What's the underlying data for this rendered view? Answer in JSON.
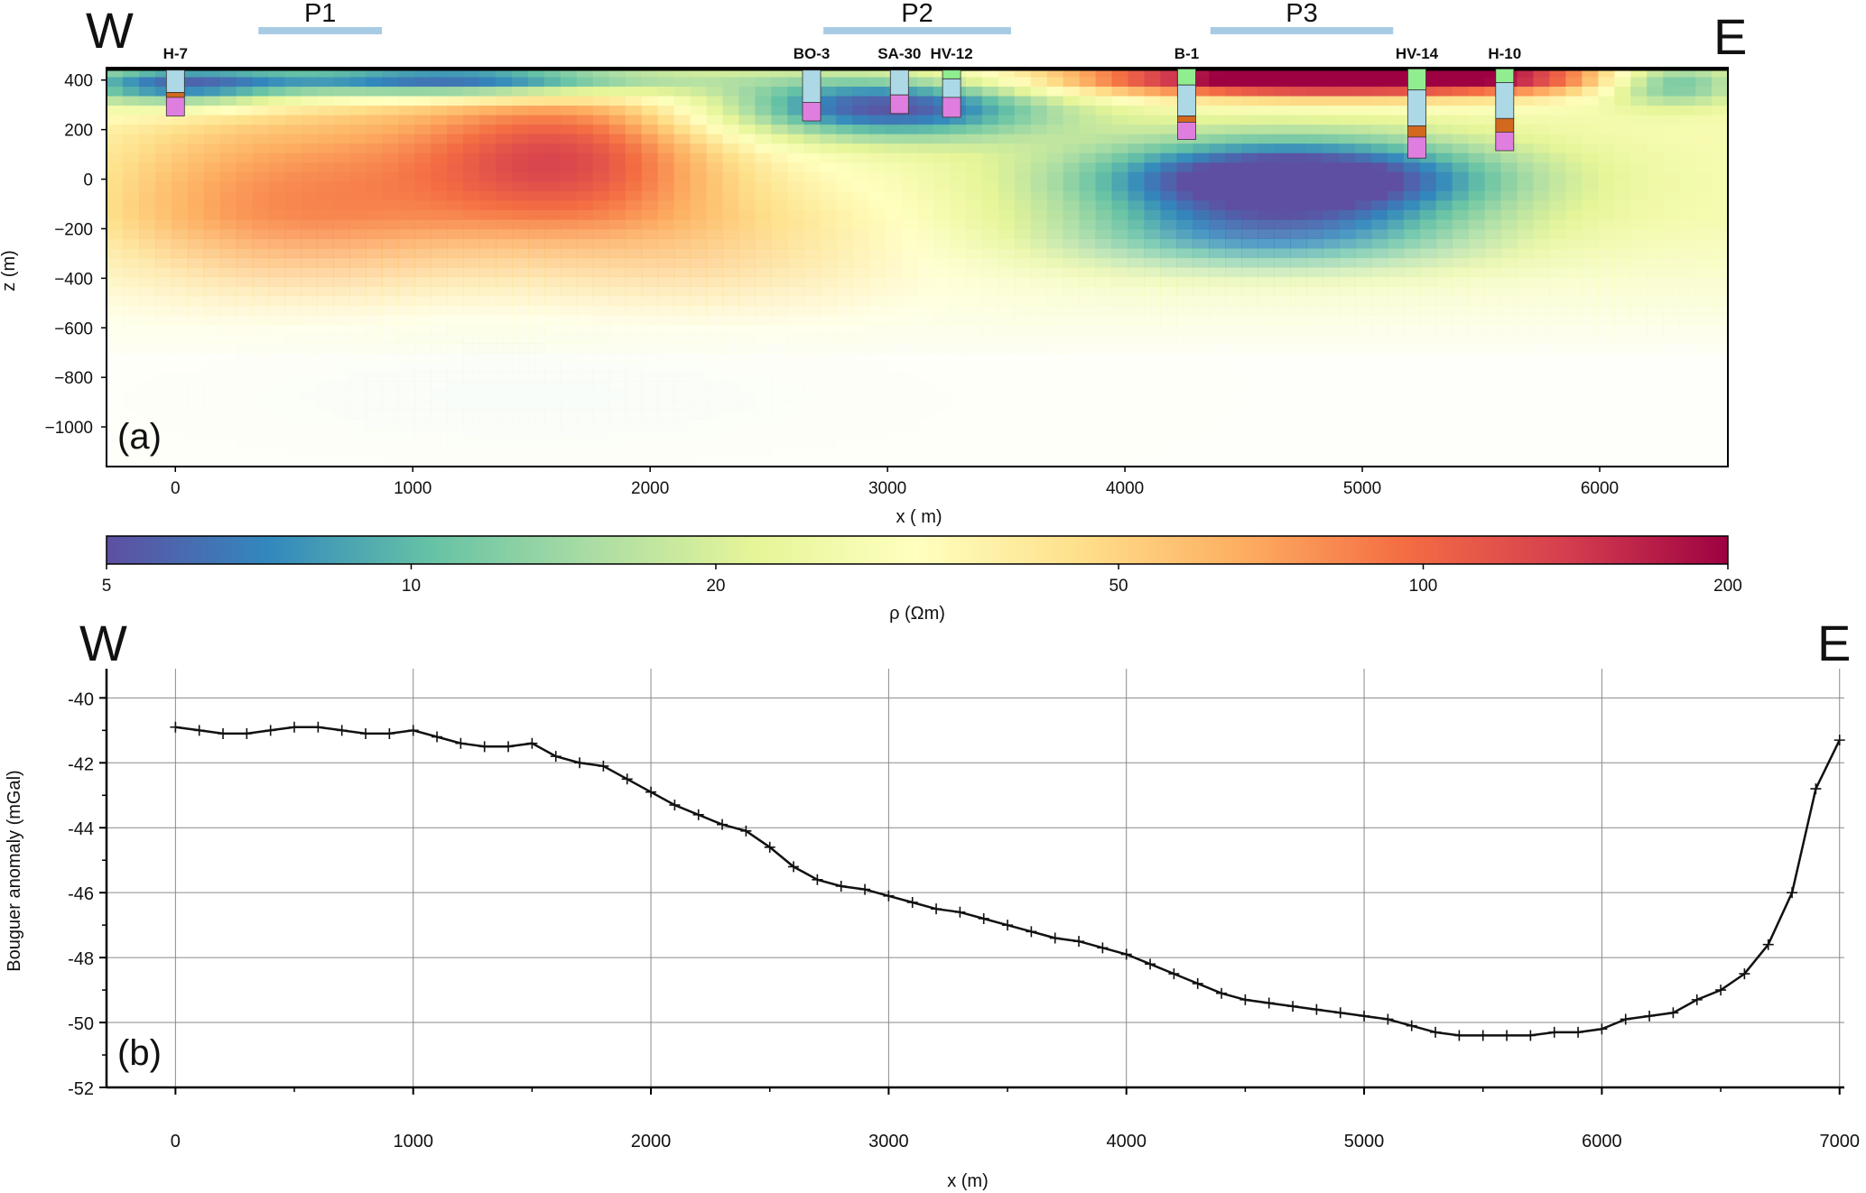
{
  "chart_data": [
    {
      "type": "heatmap",
      "panel_label": "(a)",
      "direction_left": "W",
      "direction_right": "E",
      "xlabel": "x ( m)",
      "ylabel": "z (m)",
      "xlim": [
        -290,
        6540
      ],
      "ylim": [
        -1160,
        450
      ],
      "x_ticks": [
        0,
        1000,
        2000,
        3000,
        4000,
        5000,
        6000
      ],
      "y_ticks": [
        400,
        200,
        0,
        -200,
        -400,
        -600,
        -800,
        -1000
      ],
      "y_tick_labels": [
        "400",
        "200",
        "0",
        "−200",
        "−400",
        "−600",
        "−800",
        "−1000"
      ],
      "profiles": [
        {
          "label": "P1",
          "x0": 350,
          "x1": 870
        },
        {
          "label": "P2",
          "x0": 2730,
          "x1": 3520
        },
        {
          "label": "P3",
          "x0": 4360,
          "x1": 5130
        }
      ],
      "boreholes": [
        {
          "name": "H-7",
          "x": 0
        },
        {
          "name": "BO-3",
          "x": 2680
        },
        {
          "name": "SA-30",
          "x": 3050
        },
        {
          "name": "HV-12",
          "x": 3270
        },
        {
          "name": "B-1",
          "x": 4260
        },
        {
          "name": "HV-14",
          "x": 5230
        },
        {
          "name": "H-10",
          "x": 5600
        }
      ],
      "colorbar": {
        "label": "ρ (Ωm)",
        "ticks": [
          5,
          10,
          20,
          50,
          100,
          200
        ],
        "scale": "log",
        "colormap": [
          "#5e4fa2",
          "#3288bd",
          "#66c2a5",
          "#abdda4",
          "#e6f598",
          "#ffffbf",
          "#fee08b",
          "#fdae61",
          "#f46d43",
          "#d53e4f",
          "#9e0142"
        ]
      }
    },
    {
      "type": "line",
      "panel_label": "(b)",
      "direction_left": "W",
      "direction_right": "E",
      "xlabel": "x (m)",
      "ylabel": "Bouguer anomaly (mGal)",
      "xlim": [
        -290,
        7020
      ],
      "ylim": [
        -52,
        -39.1
      ],
      "x_ticks": [
        0,
        1000,
        2000,
        3000,
        4000,
        5000,
        6000,
        7000
      ],
      "y_ticks": [
        -40,
        -42,
        -44,
        -46,
        -48,
        -50,
        -52
      ],
      "grid": true,
      "marker": "+",
      "x": [
        0,
        100,
        200,
        300,
        400,
        500,
        600,
        700,
        800,
        900,
        1000,
        1100,
        1200,
        1300,
        1400,
        1500,
        1600,
        1700,
        1800,
        1900,
        2000,
        2100,
        2200,
        2300,
        2400,
        2500,
        2600,
        2700,
        2800,
        2900,
        3000,
        3100,
        3200,
        3300,
        3400,
        3500,
        3600,
        3700,
        3800,
        3900,
        4000,
        4100,
        4200,
        4300,
        4400,
        4500,
        4600,
        4700,
        4800,
        4900,
        5000,
        5100,
        5200,
        5300,
        5400,
        5500,
        5600,
        5700,
        5800,
        5900,
        6000,
        6100,
        6200,
        6300,
        6400,
        6500,
        6600,
        6700,
        6800,
        6900,
        7000
      ],
      "y": [
        -40.9,
        -41.0,
        -41.1,
        -41.1,
        -41.0,
        -40.9,
        -40.9,
        -41.0,
        -41.1,
        -41.1,
        -41.0,
        -41.2,
        -41.4,
        -41.5,
        -41.5,
        -41.4,
        -41.8,
        -42.0,
        -42.1,
        -42.5,
        -42.9,
        -43.3,
        -43.6,
        -43.9,
        -44.1,
        -44.6,
        -45.2,
        -45.6,
        -45.8,
        -45.9,
        -46.1,
        -46.3,
        -46.5,
        -46.6,
        -46.8,
        -47.0,
        -47.2,
        -47.4,
        -47.5,
        -47.7,
        -47.9,
        -48.2,
        -48.5,
        -48.8,
        -49.1,
        -49.3,
        -49.4,
        -49.5,
        -49.6,
        -49.7,
        -49.8,
        -49.9,
        -50.1,
        -50.3,
        -50.4,
        -50.4,
        -50.4,
        -50.4,
        -50.3,
        -50.3,
        -50.2,
        -49.9,
        -49.8,
        -49.7,
        -49.3,
        -49.0,
        -48.5,
        -47.6,
        -46.0,
        -42.8,
        -41.3
      ]
    }
  ]
}
